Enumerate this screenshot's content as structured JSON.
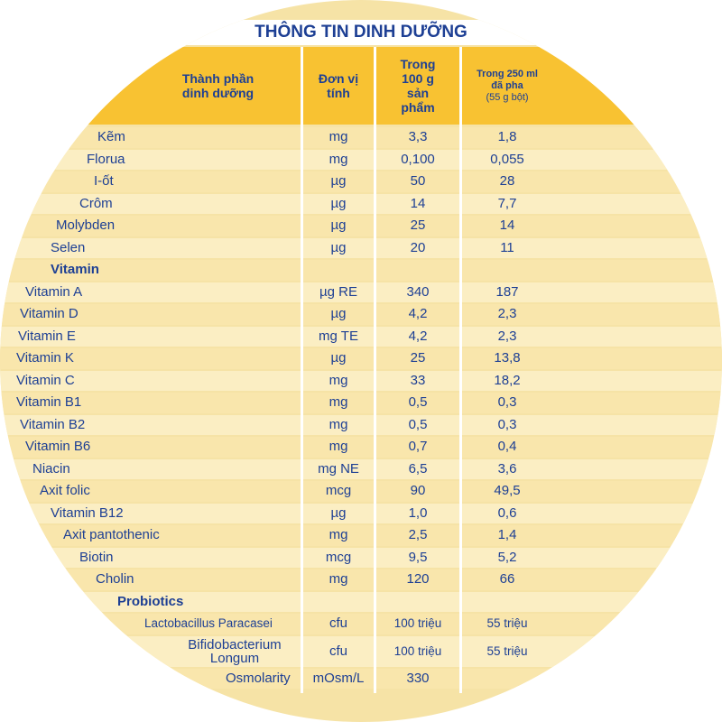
{
  "title": "THÔNG TIN DINH DƯỠNG",
  "headers": {
    "component": "Thành phần\ndinh dưỡng",
    "unit": "Đơn vị\ntính",
    "per100g": "Trong\n100 g\nsản\nphẩm",
    "per250ml": "Trong 250 ml\nđã pha",
    "per250ml_sub": "(55 g bột)"
  },
  "rows": [
    {
      "name": "Kẽm",
      "unit": "mg",
      "v100": "3,3",
      "v250": "1,8"
    },
    {
      "name": "Florua",
      "unit": "mg",
      "v100": "0,100",
      "v250": "0,055"
    },
    {
      "name": "I-ốt",
      "unit": "µg",
      "v100": "50",
      "v250": "28"
    },
    {
      "name": "Crôm",
      "unit": "µg",
      "v100": "14",
      "v250": "7,7"
    },
    {
      "name": "Molybden",
      "unit": "µg",
      "v100": "25",
      "v250": "14"
    },
    {
      "name": "Selen",
      "unit": "µg",
      "v100": "20",
      "v250": "11"
    },
    {
      "name": "Vitamin",
      "unit": "",
      "v100": "",
      "v250": ""
    },
    {
      "name": "Vitamin A",
      "unit": "µg RE",
      "v100": "340",
      "v250": "187"
    },
    {
      "name": "Vitamin D",
      "unit": "µg",
      "v100": "4,2",
      "v250": "2,3"
    },
    {
      "name": "Vitamin E",
      "unit": "mg TE",
      "v100": "4,2",
      "v250": "2,3"
    },
    {
      "name": "Vitamin K",
      "unit": "µg",
      "v100": "25",
      "v250": "13,8"
    },
    {
      "name": "Vitamin C",
      "unit": "mg",
      "v100": "33",
      "v250": "18,2"
    },
    {
      "name": "Vitamin B1",
      "unit": "mg",
      "v100": "0,5",
      "v250": "0,3"
    },
    {
      "name": "Vitamin B2",
      "unit": "mg",
      "v100": "0,5",
      "v250": "0,3"
    },
    {
      "name": "Vitamin B6",
      "unit": "mg",
      "v100": "0,7",
      "v250": "0,4"
    },
    {
      "name": "Niacin",
      "unit": "mg NE",
      "v100": "6,5",
      "v250": "3,6"
    },
    {
      "name": "Axit folic",
      "unit": "mcg",
      "v100": "90",
      "v250": "49,5"
    },
    {
      "name": "Vitamin B12",
      "unit": "µg",
      "v100": "1,0",
      "v250": "0,6"
    },
    {
      "name": "Axit pantothenic",
      "unit": "mg",
      "v100": "2,5",
      "v250": "1,4"
    },
    {
      "name": "Biotin",
      "unit": "mcg",
      "v100": "9,5",
      "v250": "5,2"
    },
    {
      "name": "Cholin",
      "unit": "mg",
      "v100": "120",
      "v250": "66"
    },
    {
      "name": "Probiotics",
      "unit": "",
      "v100": "",
      "v250": ""
    },
    {
      "name": "Lactobacillus Paracasei",
      "unit": "cfu",
      "v100": "100 triệu",
      "v250": "55 triệu"
    },
    {
      "name": "Bifidobacterium\nLongum",
      "unit": "cfu",
      "v100": "100 triệu",
      "v250": "55 triệu"
    },
    {
      "name": "Osmolarity",
      "unit": "mOsm/L",
      "v100": "330",
      "v250": ""
    }
  ]
}
